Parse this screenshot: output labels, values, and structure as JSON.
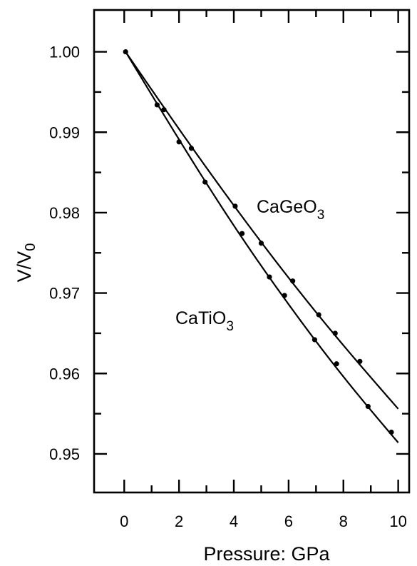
{
  "chart_data": {
    "type": "line",
    "title": "",
    "xlabel": "Pressure: GPa",
    "ylabel": {
      "main": "V/V",
      "sub": "0"
    },
    "xlim": [
      -1.1,
      10.4
    ],
    "ylim": [
      0.9452,
      1.0052
    ],
    "x_ticks": [
      0,
      2,
      4,
      6,
      8,
      10
    ],
    "y_ticks": [
      0.95,
      0.96,
      0.97,
      0.98,
      0.99,
      1.0
    ],
    "y_tick_labels": [
      "0.95",
      "0.96",
      "0.97",
      "0.98",
      "0.99",
      "1.00"
    ],
    "grid": false,
    "legend": "none",
    "series": [
      {
        "name": "CaGeO3",
        "label": {
          "main": "CaGeO",
          "sub": "3"
        },
        "points": [
          [
            0.05,
            1.0
          ],
          [
            1.45,
            0.9928
          ],
          [
            2.45,
            0.988
          ],
          [
            4.05,
            0.9808
          ],
          [
            5.0,
            0.9762
          ],
          [
            6.15,
            0.9715
          ],
          [
            7.1,
            0.9673
          ],
          [
            7.7,
            0.965
          ],
          [
            8.6,
            0.9615
          ]
        ],
        "fit": [
          [
            0.05,
            1.0
          ],
          [
            2.0,
            0.9904
          ],
          [
            4.0,
            0.9809
          ],
          [
            6.0,
            0.9719
          ],
          [
            8.0,
            0.9635
          ],
          [
            10.0,
            0.9556
          ]
        ]
      },
      {
        "name": "CaTiO3",
        "label": {
          "main": "CaTiO",
          "sub": "3"
        },
        "points": [
          [
            1.2,
            0.9934
          ],
          [
            2.0,
            0.9888
          ],
          [
            2.95,
            0.9838
          ],
          [
            4.3,
            0.9774
          ],
          [
            5.3,
            0.972
          ],
          [
            5.85,
            0.9697
          ],
          [
            6.95,
            0.9642
          ],
          [
            7.75,
            0.9612
          ],
          [
            8.9,
            0.9559
          ],
          [
            9.75,
            0.9527
          ]
        ],
        "fit": [
          [
            0.05,
            1.0
          ],
          [
            2.0,
            0.9891
          ],
          [
            4.0,
            0.9784
          ],
          [
            6.0,
            0.9686
          ],
          [
            8.0,
            0.9596
          ],
          [
            10.0,
            0.9514
          ]
        ]
      }
    ]
  }
}
